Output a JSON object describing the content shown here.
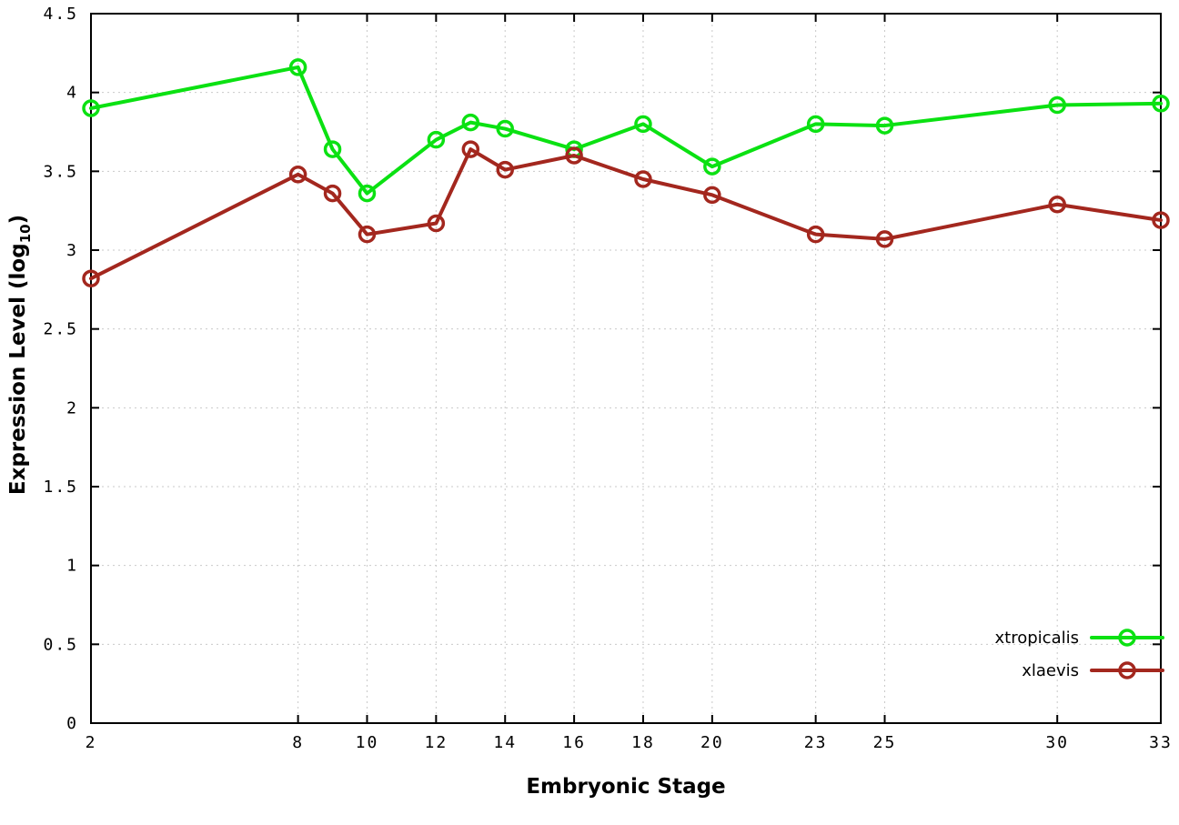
{
  "figure": {
    "background": "#ffffff",
    "border_color": "#000000",
    "grid_color": "#c9c9c9",
    "tick_color": "#000000"
  },
  "chart_data": {
    "type": "line",
    "title": "",
    "xlabel": "Embryonic Stage",
    "ylabel": "Expression Level (log10)",
    "ylabel_parts": {
      "main": "Expression Level (log",
      "sub": "10",
      "end": ")"
    },
    "xlim": [
      2,
      33
    ],
    "ylim": [
      0,
      4.5
    ],
    "x_ticks": [
      2,
      8,
      10,
      12,
      14,
      16,
      18,
      20,
      23,
      25,
      30,
      33
    ],
    "y_ticks": [
      0,
      0.5,
      1,
      1.5,
      2,
      2.5,
      3,
      3.5,
      4,
      4.5
    ],
    "grid": true,
    "legend_position": "bottom-right",
    "x": [
      2,
      8,
      9,
      10,
      12,
      13,
      14,
      16,
      18,
      20,
      23,
      25,
      30,
      33
    ],
    "series": [
      {
        "name": "xtropicalis",
        "color": "#0be112",
        "marker": "open-circle",
        "values": [
          3.9,
          4.16,
          3.64,
          3.36,
          3.7,
          3.81,
          3.77,
          3.64,
          3.8,
          3.53,
          3.8,
          3.79,
          3.92,
          3.93
        ]
      },
      {
        "name": "xlaevis",
        "color": "#a3271e",
        "marker": "open-circle",
        "values": [
          2.82,
          3.48,
          3.36,
          3.1,
          3.17,
          3.64,
          3.51,
          3.6,
          3.45,
          3.35,
          3.1,
          3.07,
          3.29,
          3.19
        ]
      }
    ]
  }
}
